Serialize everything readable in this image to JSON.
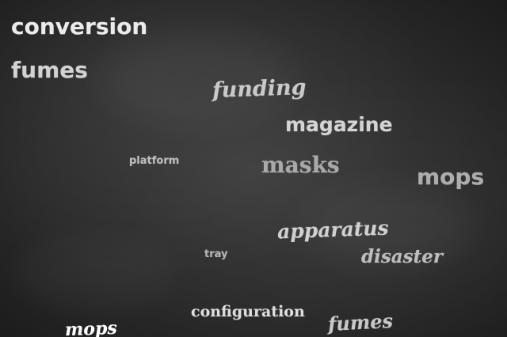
{
  "words": [
    {
      "text": "conversion"
    },
    {
      "text": "fumes"
    },
    {
      "text": "funding"
    },
    {
      "text": "magazine"
    },
    {
      "text": "platform"
    },
    {
      "text": "masks"
    },
    {
      "text": "mops"
    },
    {
      "text": "apparatus"
    },
    {
      "text": "tray"
    },
    {
      "text": "disaster"
    },
    {
      "text": "configuration"
    },
    {
      "text": "fumes"
    },
    {
      "text": "mops"
    }
  ]
}
